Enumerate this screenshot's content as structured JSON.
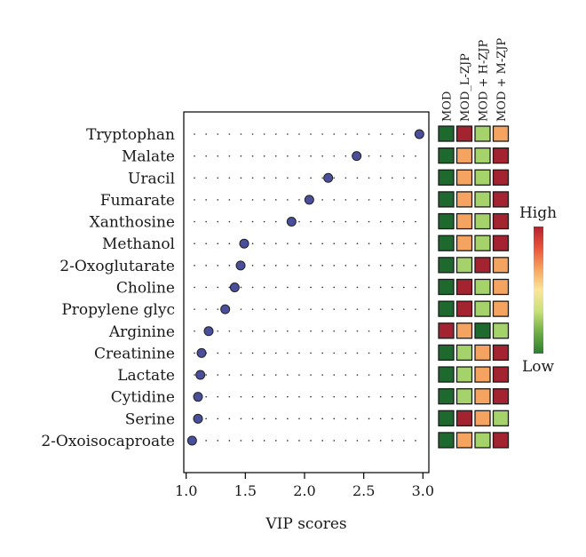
{
  "chart_data": {
    "type": "scatter",
    "title": "",
    "xlabel": "VIP scores",
    "ylabel": "",
    "xlim": [
      0.98,
      3.05
    ],
    "xticks": [
      1.0,
      1.5,
      2.0,
      2.5,
      3.0
    ],
    "xtick_labels": [
      "1.0",
      "1.5",
      "2.0",
      "2.5",
      "3.0"
    ],
    "grid": "dotted-rows",
    "categories": [
      "Tryptophan",
      "Malate",
      "Uracil",
      "Fumarate",
      "Xanthosine",
      "Methanol",
      "2-Oxoglutarate",
      "Choline",
      "Propylene glyc",
      "Arginine",
      "Creatinine",
      "Lactate",
      "Cytidine",
      "Serine",
      "2-Oxoisocaproate"
    ],
    "values": [
      2.97,
      2.44,
      2.2,
      2.04,
      1.89,
      1.49,
      1.46,
      1.41,
      1.33,
      1.19,
      1.13,
      1.12,
      1.1,
      1.1,
      1.05
    ],
    "point_color": "#4a4f9c",
    "heatmap": {
      "columns": [
        "MOD",
        "MOD_L-ZJP",
        "MOD + H-ZJP",
        "MOD + M-ZJP"
      ],
      "levels": [
        [
          1,
          5,
          3,
          4
        ],
        [
          1,
          4,
          3,
          5
        ],
        [
          1,
          4,
          3,
          5
        ],
        [
          1,
          4,
          3,
          5
        ],
        [
          1,
          4,
          3,
          5
        ],
        [
          1,
          4,
          3,
          5
        ],
        [
          1,
          3,
          5,
          4
        ],
        [
          1,
          5,
          3,
          4
        ],
        [
          1,
          5,
          3,
          4
        ],
        [
          5,
          4,
          1,
          3
        ],
        [
          1,
          3,
          4,
          5
        ],
        [
          1,
          3,
          4,
          5
        ],
        [
          1,
          3,
          4,
          5
        ],
        [
          1,
          5,
          4,
          3
        ],
        [
          1,
          4,
          3,
          5
        ]
      ],
      "level_colors": {
        "1": "#1e6a2e",
        "2": "#5a9a3a",
        "3": "#a5d26a",
        "4": "#f4a460",
        "5": "#a32430"
      }
    },
    "legend": {
      "high_label": "High",
      "low_label": "Low",
      "gradient": [
        "#b5202f",
        "#e8543a",
        "#f7a35e",
        "#fbe59a",
        "#c8e07a",
        "#6fae45",
        "#2e7d32"
      ],
      "placement": "right"
    }
  }
}
